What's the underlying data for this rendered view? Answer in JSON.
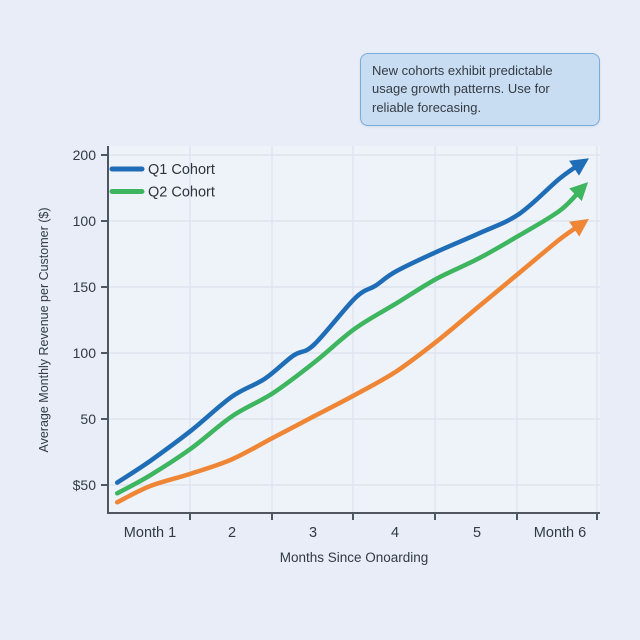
{
  "page": {
    "background": "#e8edf7"
  },
  "callout": {
    "text": "New cohorts exhibit predictable usage growth patterns. Use for reliable forecasing.",
    "fill": "#c9ddf2",
    "border": "#7aacdb"
  },
  "chart_data": {
    "type": "line",
    "title": "",
    "xlabel": "Months Since Onoarding",
    "ylabel": "Average Monthly Revenue per Customer ($)",
    "x_tick_labels": [
      "Month 1",
      "2",
      "3",
      "4",
      "5",
      "Month 6"
    ],
    "y_tick_labels": [
      "200",
      "100",
      "150",
      "100",
      "50",
      "$50"
    ],
    "xlim": [
      0.5,
      6.45
    ],
    "ylim": [
      0,
      200
    ],
    "grid": "on",
    "legend_position": "upper-left",
    "arrow_line_ends": true,
    "series": [
      {
        "legend_label": "Q1 Cohort",
        "color": "#1e6db6",
        "points": [
          [
            0.6,
            17
          ],
          [
            1,
            29
          ],
          [
            1.5,
            46
          ],
          [
            2,
            65
          ],
          [
            2.4,
            75
          ],
          [
            2.75,
            88
          ],
          [
            3,
            94
          ],
          [
            3.5,
            120
          ],
          [
            3.75,
            127
          ],
          [
            4,
            135
          ],
          [
            4.5,
            146
          ],
          [
            5,
            156
          ],
          [
            5.5,
            167
          ],
          [
            6,
            187
          ],
          [
            6.28,
            196
          ]
        ]
      },
      {
        "legend_label": "Q2 Cohort",
        "color": "#3eb55f",
        "points": [
          [
            0.6,
            11
          ],
          [
            1,
            21
          ],
          [
            1.5,
            36
          ],
          [
            2,
            54
          ],
          [
            2.5,
            67
          ],
          [
            3,
            84
          ],
          [
            3.5,
            103
          ],
          [
            4,
            117
          ],
          [
            4.5,
            131
          ],
          [
            5,
            142
          ],
          [
            5.5,
            155
          ],
          [
            6,
            169
          ],
          [
            6.28,
            182
          ]
        ]
      },
      {
        "legend_label": null,
        "color": "#ef8635",
        "points": [
          [
            0.6,
            6
          ],
          [
            1,
            15
          ],
          [
            1.5,
            22
          ],
          [
            2,
            30
          ],
          [
            2.5,
            42
          ],
          [
            3,
            54
          ],
          [
            3.5,
            66
          ],
          [
            4,
            79
          ],
          [
            4.5,
            96
          ],
          [
            5,
            115
          ],
          [
            5.5,
            134
          ],
          [
            6,
            153
          ],
          [
            6.28,
            162
          ]
        ]
      }
    ]
  },
  "colors": {
    "plot_bg": "#eef2f9",
    "grid": "#dce3ee",
    "axis": "#4f565f",
    "tick_text": "#333a43"
  }
}
